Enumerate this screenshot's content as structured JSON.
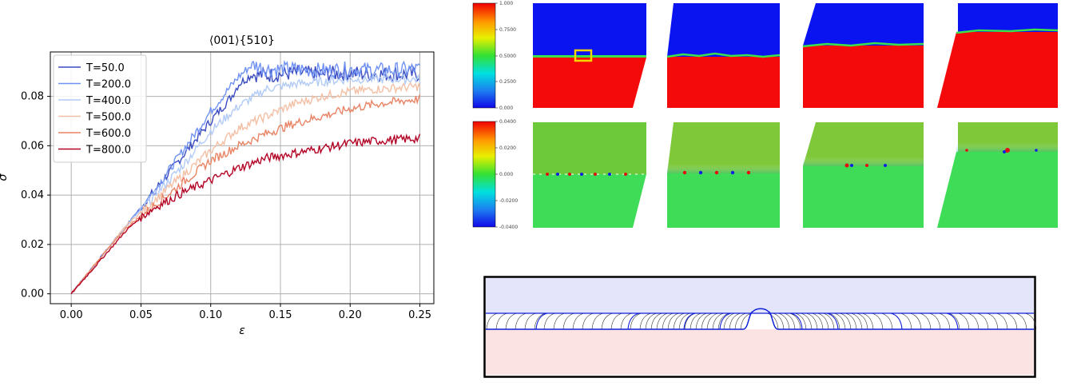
{
  "chart_data": {
    "type": "line",
    "title": "⟨001⟩{510}",
    "xlabel": "ε",
    "ylabel": "σ",
    "xlim": [
      -0.015,
      0.26
    ],
    "ylim": [
      -0.004,
      0.098
    ],
    "xticks": [
      "0.00",
      "0.05",
      "0.10",
      "0.15",
      "0.20",
      "0.25"
    ],
    "xtick_values": [
      0.0,
      0.05,
      0.1,
      0.15,
      0.2,
      0.25
    ],
    "yticks": [
      "0.00",
      "0.02",
      "0.04",
      "0.06",
      "0.08"
    ],
    "ytick_values": [
      0.0,
      0.02,
      0.04,
      0.06,
      0.08
    ],
    "grid": true,
    "legend_position": "top-left",
    "series": [
      {
        "name": "T=50.0",
        "color": "#3b4cc0",
        "x": [
          0,
          0.02,
          0.04,
          0.06,
          0.08,
          0.1,
          0.115,
          0.12,
          0.125,
          0.13,
          0.14,
          0.16,
          0.18,
          0.2,
          0.22,
          0.25
        ],
        "y": [
          0,
          0.014,
          0.028,
          0.042,
          0.056,
          0.07,
          0.08,
          0.085,
          0.087,
          0.089,
          0.0885,
          0.0895,
          0.089,
          0.0895,
          0.089,
          0.089
        ]
      },
      {
        "name": "T=200.0",
        "color": "#6f92f3",
        "x": [
          0,
          0.02,
          0.04,
          0.06,
          0.08,
          0.1,
          0.12,
          0.13,
          0.14,
          0.16,
          0.18,
          0.2,
          0.22,
          0.25
        ],
        "y": [
          0,
          0.014,
          0.028,
          0.042,
          0.058,
          0.074,
          0.088,
          0.093,
          0.091,
          0.091,
          0.0905,
          0.091,
          0.0905,
          0.091
        ]
      },
      {
        "name": "T=400.0",
        "color": "#b2cbf7",
        "x": [
          0,
          0.02,
          0.04,
          0.06,
          0.08,
          0.1,
          0.12,
          0.14,
          0.16,
          0.18,
          0.2,
          0.22,
          0.25
        ],
        "y": [
          0,
          0.014,
          0.028,
          0.04,
          0.052,
          0.066,
          0.076,
          0.083,
          0.085,
          0.086,
          0.087,
          0.087,
          0.087
        ]
      },
      {
        "name": "T=500.0",
        "color": "#f3c0a6",
        "x": [
          0,
          0.02,
          0.04,
          0.06,
          0.08,
          0.1,
          0.12,
          0.14,
          0.16,
          0.18,
          0.2,
          0.22,
          0.25
        ],
        "y": [
          0,
          0.014,
          0.028,
          0.038,
          0.048,
          0.058,
          0.067,
          0.072,
          0.077,
          0.08,
          0.082,
          0.083,
          0.084
        ]
      },
      {
        "name": "T=600.0",
        "color": "#e88465",
        "x": [
          0,
          0.02,
          0.04,
          0.06,
          0.08,
          0.1,
          0.12,
          0.14,
          0.16,
          0.18,
          0.2,
          0.22,
          0.25
        ],
        "y": [
          0,
          0.014,
          0.027,
          0.036,
          0.045,
          0.054,
          0.06,
          0.065,
          0.069,
          0.072,
          0.075,
          0.077,
          0.079
        ]
      },
      {
        "name": "T=800.0",
        "color": "#b40426",
        "x": [
          0,
          0.02,
          0.04,
          0.05,
          0.06,
          0.08,
          0.1,
          0.12,
          0.14,
          0.16,
          0.18,
          0.2,
          0.22,
          0.25
        ],
        "y": [
          0,
          0.013,
          0.026,
          0.031,
          0.035,
          0.041,
          0.046,
          0.051,
          0.055,
          0.057,
          0.059,
          0.061,
          0.062,
          0.063
        ]
      }
    ]
  },
  "colorbar_top": {
    "labels": [
      "1.000",
      "0.7500",
      "0.5000",
      "0.2500",
      "0.000"
    ]
  },
  "colorbar_bottom": {
    "labels": [
      "0.0400",
      "0.0200",
      "0.000",
      "-0.0200",
      "-0.0400"
    ]
  },
  "colors": {
    "blue_phase": "#0a14f0",
    "red_phase": "#f40a0a",
    "green_field": "#4ede2e",
    "highlight_box": "#f5d400",
    "top_band": "#e4e4fa",
    "bottom_band": "#fbe3e3",
    "interface_line": "#1020d8"
  }
}
